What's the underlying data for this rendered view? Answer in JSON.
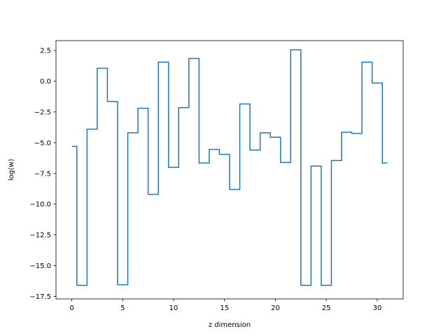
{
  "chart_data": {
    "type": "line",
    "drawstyle": "steps-mid",
    "xlabel": "z dimension",
    "ylabel": "log(w)",
    "xlim": [
      -1.55,
      32.55
    ],
    "ylim": [
      -17.7,
      3.3
    ],
    "grid": false,
    "xticks": [
      0,
      5,
      10,
      15,
      20,
      25,
      30
    ],
    "xtick_labels": [
      "0",
      "5",
      "10",
      "15",
      "20",
      "25",
      "30"
    ],
    "yticks": [
      2.5,
      0.0,
      -2.5,
      -5.0,
      -7.5,
      -10.0,
      -12.5,
      -15.0,
      -17.5
    ],
    "ytick_labels": [
      "2.5",
      "0.0",
      "−2.5",
      "−5.0",
      "−7.5",
      "−10.0",
      "−12.5",
      "−15.0",
      "−17.5"
    ],
    "color": "#1f77b4",
    "series": [
      {
        "x": [
          0,
          1,
          2,
          3,
          4,
          5,
          6,
          7,
          8,
          9,
          10,
          11,
          12,
          13,
          14,
          15,
          16,
          17,
          18,
          19,
          20,
          21,
          22,
          23,
          24,
          25,
          26,
          27,
          28,
          29,
          30,
          31
        ],
        "values": [
          -5.3,
          -16.6,
          -3.9,
          1.05,
          -1.65,
          -16.55,
          -4.2,
          -2.2,
          -9.2,
          1.55,
          -7.0,
          -2.15,
          1.85,
          -6.65,
          -5.55,
          -5.95,
          -8.8,
          -1.85,
          -5.6,
          -4.2,
          -4.55,
          -6.6,
          2.55,
          -16.6,
          -6.9,
          -16.6,
          -6.45,
          -4.15,
          -4.25,
          1.55,
          -0.15,
          -6.65
        ]
      }
    ]
  }
}
